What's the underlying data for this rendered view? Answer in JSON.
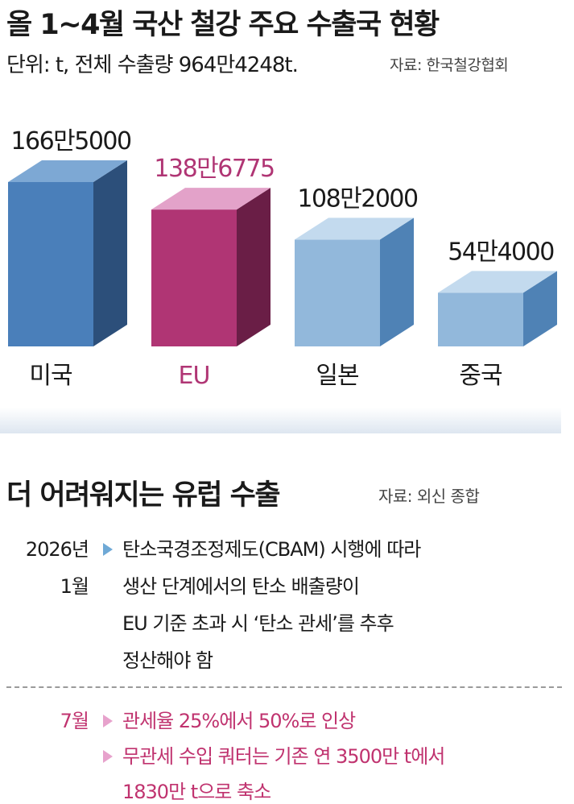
{
  "title": "올 1~4월 국산 철강 주요 수출국 현황",
  "subtitle": "단위: t, 전체 수출량 964만4248t.",
  "source_top": "자료: 한국철강협회",
  "chart_data": {
    "type": "bar",
    "categories": [
      "미국",
      "EU",
      "일본",
      "중국"
    ],
    "values": [
      1665000,
      1386775,
      1082000,
      544000
    ],
    "value_labels": [
      "166만5000",
      "138만6775",
      "108만2000",
      "54만4000"
    ],
    "unit": "t",
    "colors": {
      "미국": {
        "front": "#4a7fba",
        "side": "#2c4f7a",
        "top": "#7da8d4",
        "label": "#1a1a1a"
      },
      "EU": {
        "front": "#b03574",
        "side": "#6a1e46",
        "top": "#e3a2c9",
        "label": "#b03574"
      },
      "일본": {
        "front": "#92b8db",
        "side": "#4f82b5",
        "top": "#c3daee",
        "label": "#1a1a1a"
      },
      "중국": {
        "front": "#92b8db",
        "side": "#4f82b5",
        "top": "#c3daee",
        "label": "#1a1a1a"
      }
    }
  },
  "section2": {
    "title": "더 어려워지는 유럽 수출",
    "source": "자료: 외신 종합",
    "entries": [
      {
        "date_lines": [
          "2026년",
          "1월"
        ],
        "color": "#6fa9d6",
        "bullets": [
          [
            "탄소국경조정제도(CBAM) 시행에 따라",
            "생산 단계에서의 탄소 배출량이",
            "EU 기준 초과 시 ‘탄소 관세’를 추후",
            "정산해야 함"
          ]
        ]
      },
      {
        "date_lines": [
          "7월"
        ],
        "color": "#e7a2cc",
        "bullets": [
          [
            "관세율 25%에서 50%로 인상"
          ],
          [
            "무관세 수입 쿼터는 기존 연 3500만 t에서",
            "1830만 t으로 축소"
          ]
        ]
      }
    ]
  }
}
